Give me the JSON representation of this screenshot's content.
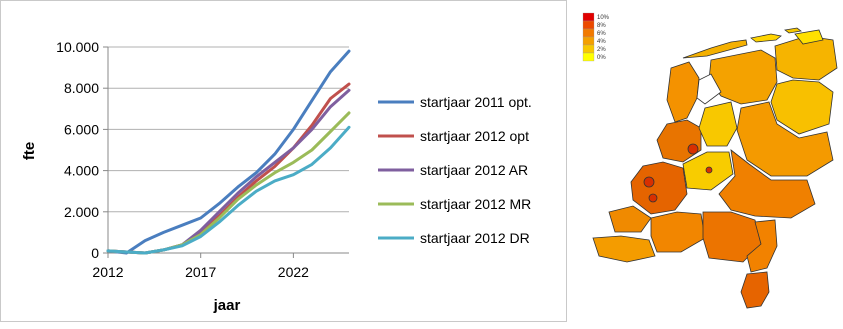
{
  "chart_data": {
    "type": "line",
    "xlabel": "jaar",
    "ylabel": "fte",
    "xlim": [
      2012,
      2025
    ],
    "ylim": [
      0,
      10000
    ],
    "xticks": [
      2012,
      2017,
      2022
    ],
    "xtick_labels": [
      "2012",
      "2017",
      "2022"
    ],
    "yticks": [
      0,
      2000,
      4000,
      6000,
      8000,
      10000
    ],
    "ytick_labels": [
      "0",
      "2.000",
      "4.000",
      "6.000",
      "8.000",
      "10.000"
    ],
    "grid": "horizontal",
    "legend_position": "right",
    "x": [
      2012,
      2013,
      2014,
      2015,
      2016,
      2017,
      2018,
      2019,
      2020,
      2021,
      2022,
      2023,
      2024,
      2025
    ],
    "series": [
      {
        "name": "startjaar 2011 opt.",
        "color": "#4a7ebf",
        "values": [
          100,
          0,
          600,
          1000,
          1350,
          1700,
          2400,
          3200,
          3900,
          4800,
          6000,
          7400,
          8800,
          9800
        ]
      },
      {
        "name": "startjaar 2012 opt",
        "color": "#c0504d",
        "values": [
          100,
          50,
          0,
          150,
          400,
          1000,
          1800,
          2700,
          3500,
          4200,
          5100,
          6200,
          7500,
          8200
        ]
      },
      {
        "name": "startjaar 2012 AR",
        "color": "#7f5f9f",
        "values": [
          100,
          50,
          0,
          150,
          400,
          1100,
          2000,
          2900,
          3700,
          4400,
          5100,
          6000,
          7100,
          7900
        ]
      },
      {
        "name": "startjaar 2012 MR",
        "color": "#9bbb59",
        "values": [
          100,
          50,
          0,
          150,
          400,
          900,
          1700,
          2600,
          3300,
          3900,
          4400,
          5000,
          5900,
          6800
        ]
      },
      {
        "name": "startjaar 2012 DR",
        "color": "#4bacc6",
        "values": [
          100,
          50,
          0,
          150,
          350,
          800,
          1500,
          2300,
          3000,
          3500,
          3800,
          4300,
          5100,
          6100
        ]
      }
    ]
  },
  "map": {
    "legend": [
      {
        "label": "10%",
        "color": "#e00000"
      },
      {
        "label": "8%",
        "color": "#ec4a00"
      },
      {
        "label": "6%",
        "color": "#f27a00"
      },
      {
        "label": "4%",
        "color": "#f4a000"
      },
      {
        "label": "2%",
        "color": "#f8c800"
      },
      {
        "label": "0%",
        "color": "#ffff00"
      }
    ]
  }
}
